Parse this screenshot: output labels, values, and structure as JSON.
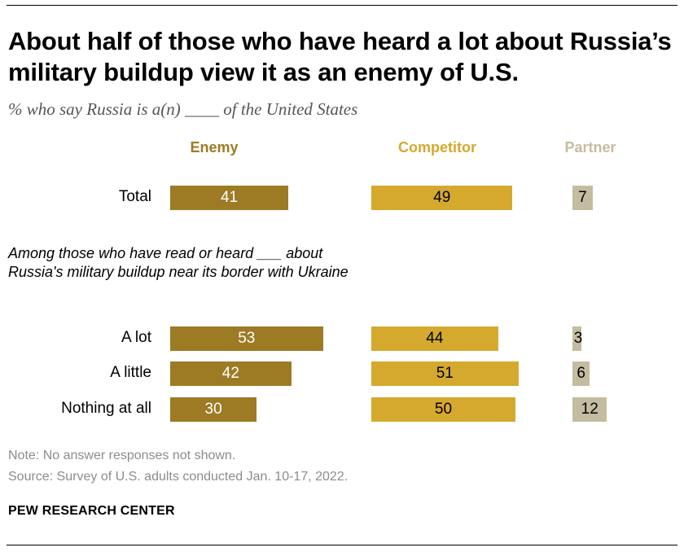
{
  "title": "About half of those who have heard a lot about Russia’s military buildup view it as an enemy of U.S.",
  "subtitle": "% who say Russia is a(n) ____ of the United States",
  "group_label": "Among those who have read or heard ___ about Russia's military buildup near its border with Ukraine",
  "note": "Note: No answer responses not shown.",
  "source": "Source: Survey of U.S. adults conducted Jan. 10-17, 2022.",
  "brand": "PEW RESEARCH CENTER",
  "colors": {
    "enemy": "#9c7b24",
    "competitor": "#d4a92e",
    "partner": "#c4bca0"
  },
  "chart_data": {
    "type": "bar",
    "orientation": "horizontal",
    "categories": [
      "Total",
      "A lot",
      "A little",
      "Nothing at all"
    ],
    "series": [
      {
        "name": "Enemy",
        "values": [
          41,
          53,
          42,
          30
        ]
      },
      {
        "name": "Competitor",
        "values": [
          49,
          44,
          51,
          50
        ]
      },
      {
        "name": "Partner",
        "values": [
          7,
          3,
          6,
          12
        ]
      }
    ]
  }
}
